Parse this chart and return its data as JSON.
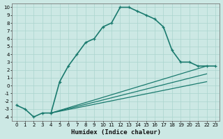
{
  "xlabel": "Humidex (Indice chaleur)",
  "ylabel": "",
  "bg_color": "#cce8e4",
  "line_color": "#1a7a6e",
  "xlim": [
    -0.5,
    23.5
  ],
  "ylim": [
    -4.5,
    10.5
  ],
  "xticks": [
    0,
    1,
    2,
    3,
    4,
    5,
    6,
    7,
    8,
    9,
    10,
    11,
    12,
    13,
    14,
    15,
    16,
    17,
    18,
    19,
    20,
    21,
    22,
    23
  ],
  "yticks": [
    -4,
    -3,
    -2,
    -1,
    0,
    1,
    2,
    3,
    4,
    5,
    6,
    7,
    8,
    9,
    10
  ],
  "main_x": [
    0,
    1,
    2,
    3,
    4,
    5,
    6,
    7,
    8,
    9,
    10,
    11,
    12,
    13,
    14,
    15,
    16,
    17,
    18,
    19,
    20,
    21,
    22,
    23
  ],
  "main_y": [
    -2.5,
    -3.0,
    -4.0,
    -3.5,
    -3.5,
    0.5,
    2.5,
    4.0,
    5.5,
    6.0,
    7.5,
    8.0,
    10.0,
    10.0,
    9.5,
    9.0,
    8.5,
    7.5,
    4.5,
    3.0,
    3.0,
    2.5,
    2.5,
    2.5
  ],
  "fan_lines": [
    {
      "x": [
        4,
        22
      ],
      "y": [
        -3.5,
        2.5
      ]
    },
    {
      "x": [
        4,
        22
      ],
      "y": [
        -3.5,
        1.5
      ]
    },
    {
      "x": [
        4,
        22
      ],
      "y": [
        -3.5,
        0.5
      ]
    }
  ],
  "grid_color": "#aad4ce",
  "xlabel_fontsize": 6.5
}
